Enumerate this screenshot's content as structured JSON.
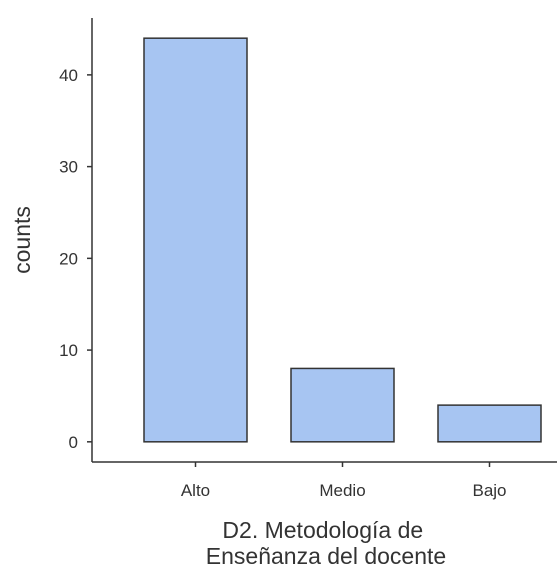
{
  "chart_data": {
    "type": "bar",
    "categories": [
      "Alto",
      "Medio",
      "Bajo"
    ],
    "values": [
      44,
      8,
      4
    ],
    "ylabel": "counts",
    "xlabel_lines": [
      "D2. Metodología de",
      "Enseñanza del docente"
    ],
    "yticks": [
      0,
      10,
      20,
      30,
      40
    ],
    "ylim": [
      -2.2,
      46.2
    ],
    "grid": false,
    "legend": "none",
    "bar_color": "#A7C5F2",
    "bar_outline_color": "#333333"
  }
}
